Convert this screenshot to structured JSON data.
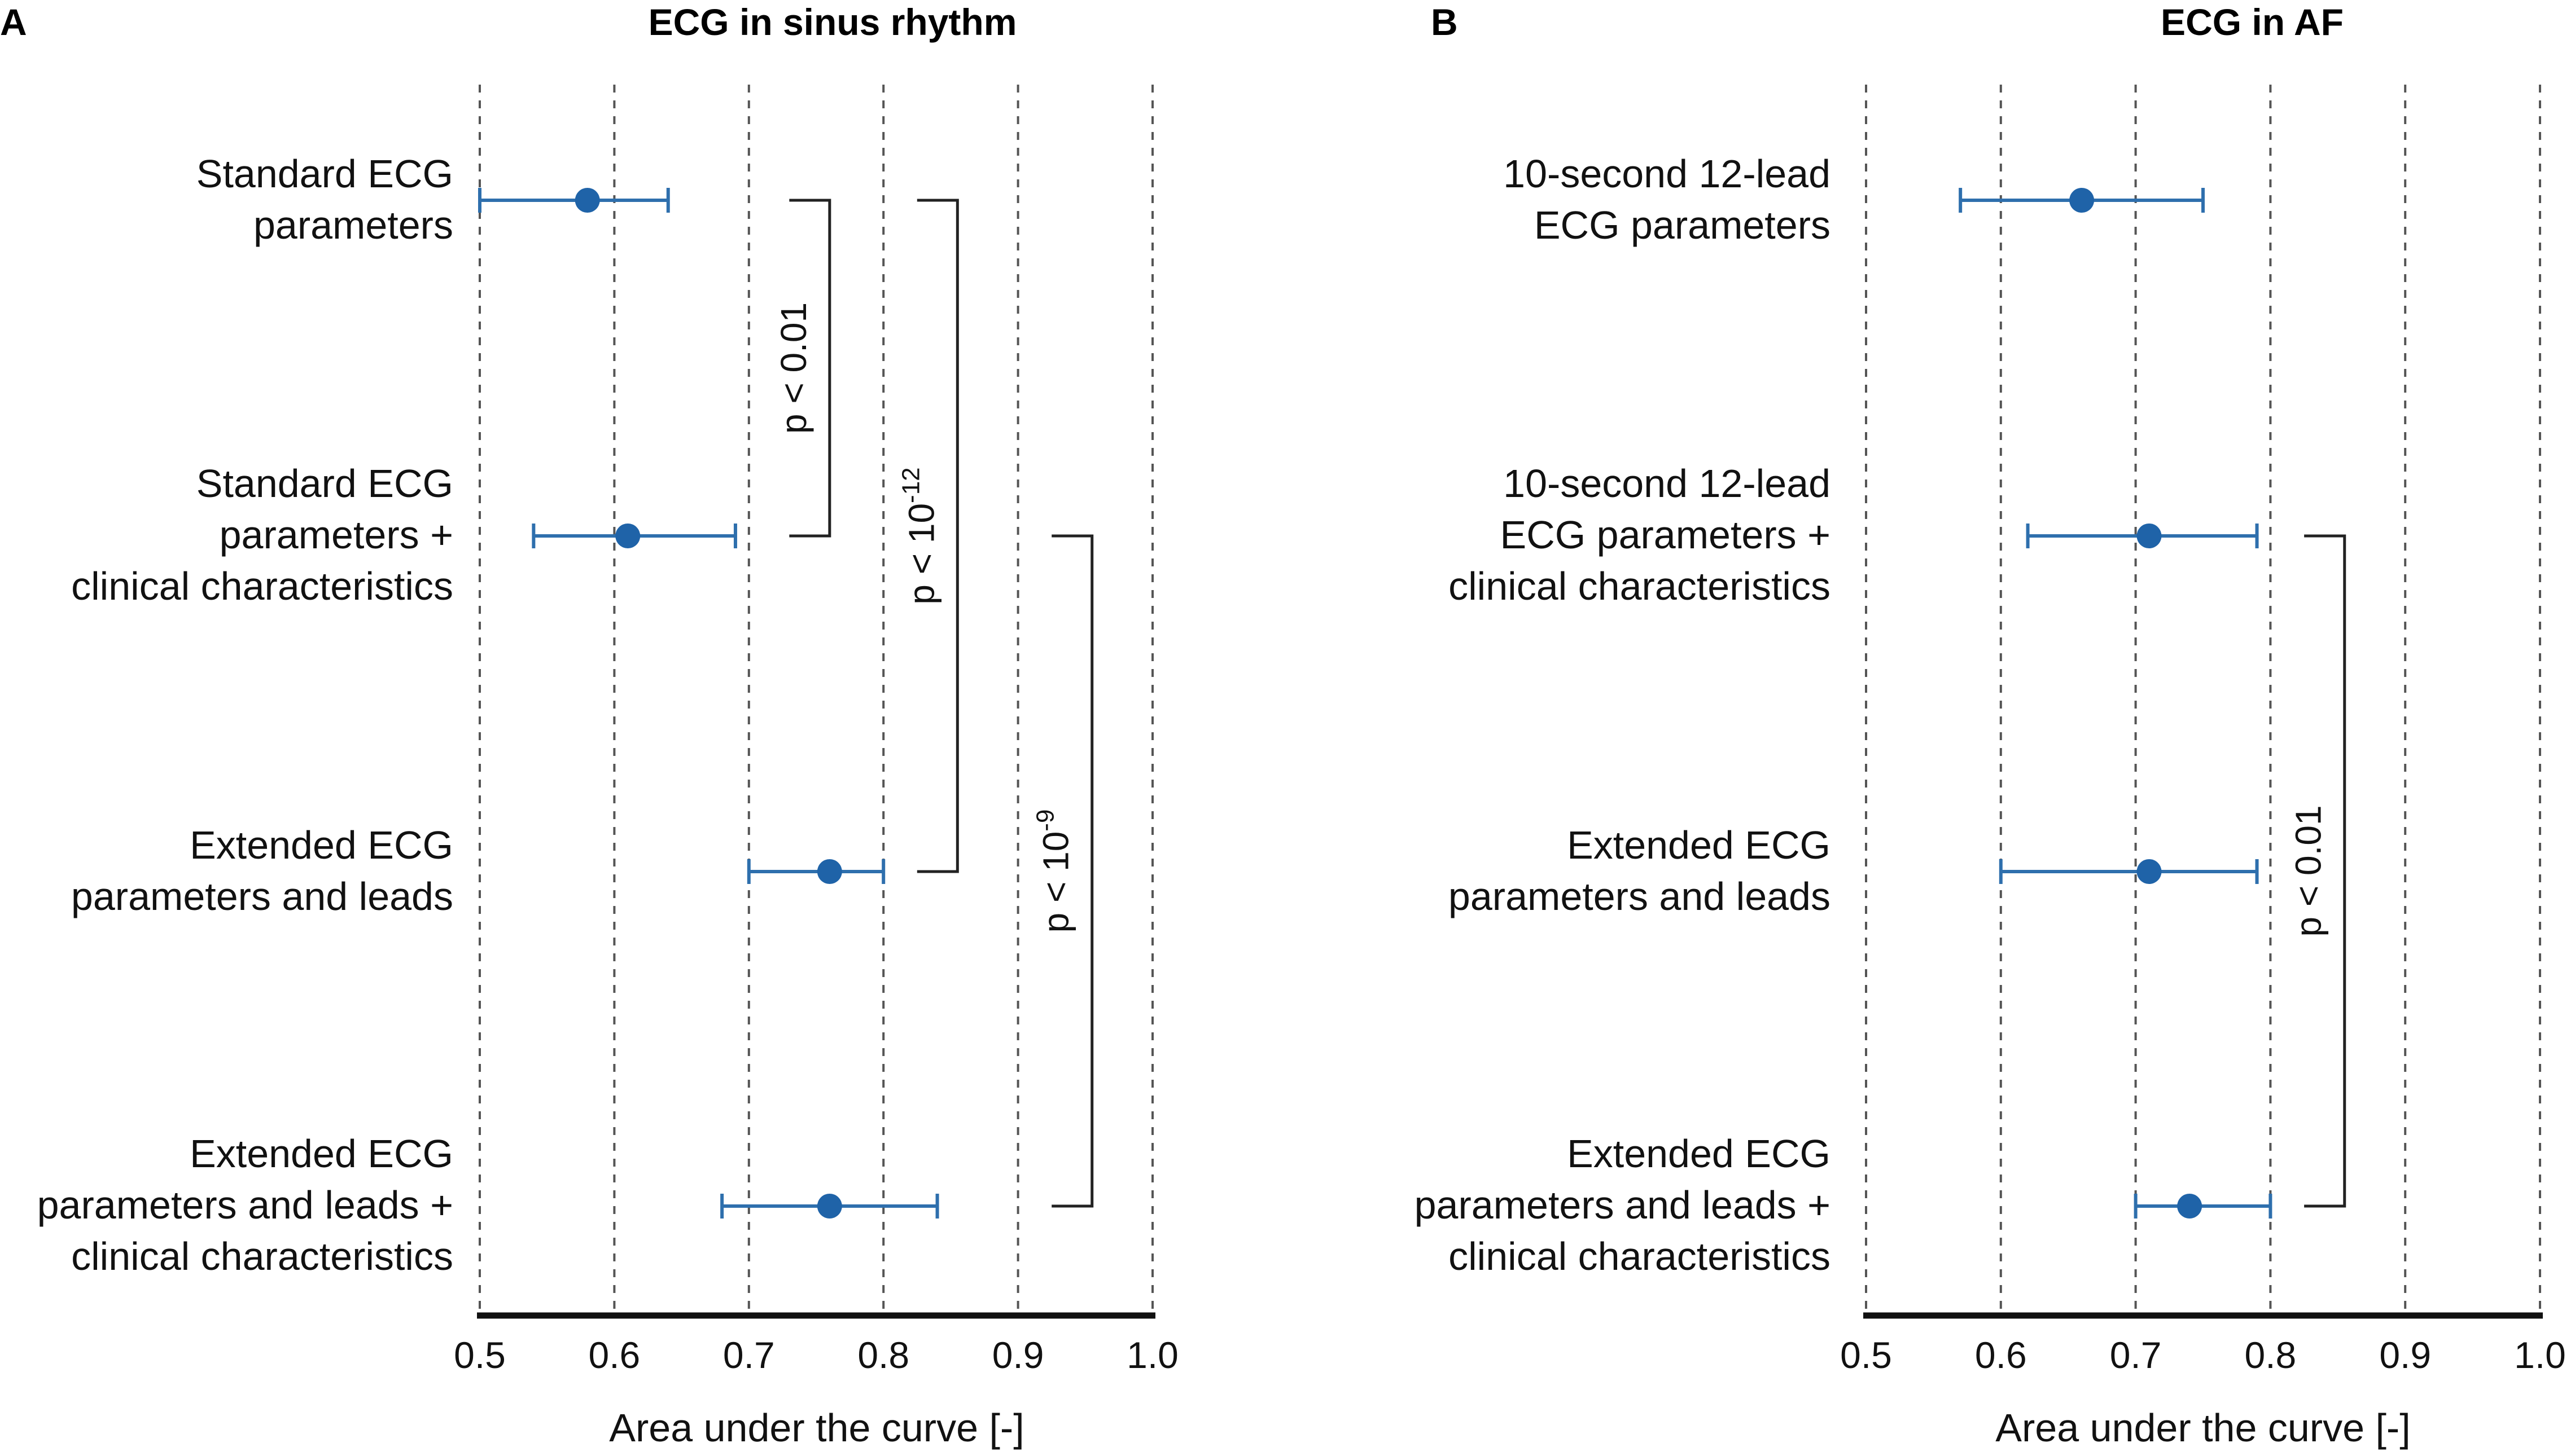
{
  "chart_data": [
    {
      "type": "forest",
      "panel": "A",
      "title": "ECG in sinus rhythm",
      "xlabel": "Area under the curve [-]",
      "xlim": [
        0.5,
        1.0
      ],
      "xticks": [
        "0.5",
        "0.6",
        "0.7",
        "0.8",
        "0.9",
        "1.0"
      ],
      "grid": true,
      "categories": [
        {
          "lines": [
            "Standard ECG",
            "parameters"
          ],
          "auc": 0.58,
          "ci": [
            0.5,
            0.64
          ]
        },
        {
          "lines": [
            "Standard ECG",
            "parameters +",
            "clinical characteristics"
          ],
          "auc": 0.61,
          "ci": [
            0.54,
            0.69
          ]
        },
        {
          "lines": [
            "Extended ECG",
            "parameters and leads"
          ],
          "auc": 0.76,
          "ci": [
            0.7,
            0.8
          ]
        },
        {
          "lines": [
            "Extended ECG",
            "parameters and leads +",
            "clinical characteristics"
          ],
          "auc": 0.76,
          "ci": [
            0.68,
            0.84
          ]
        }
      ],
      "comparisons": [
        {
          "from": 0,
          "to": 1,
          "label_base": "p < 0.01",
          "label_sup": "",
          "bracket_x": 0.76,
          "tick_x": 0.73
        },
        {
          "from": 0,
          "to": 2,
          "label_base": "p < 10",
          "label_sup": "-12",
          "bracket_x": 0.855,
          "tick_x": 0.825
        },
        {
          "from": 1,
          "to": 3,
          "label_base": "p < 10",
          "label_sup": "-9",
          "bracket_x": 0.955,
          "tick_x": 0.925
        }
      ]
    },
    {
      "type": "forest",
      "panel": "B",
      "title": "ECG in AF",
      "xlabel": "Area under the curve [-]",
      "xlim": [
        0.5,
        1.0
      ],
      "xticks": [
        "0.5",
        "0.6",
        "0.7",
        "0.8",
        "0.9",
        "1.0"
      ],
      "grid": true,
      "categories": [
        {
          "lines": [
            "10-second 12-lead",
            "ECG parameters"
          ],
          "auc": 0.66,
          "ci": [
            0.57,
            0.75
          ]
        },
        {
          "lines": [
            "10-second 12-lead",
            "ECG parameters +",
            "clinical characteristics"
          ],
          "auc": 0.71,
          "ci": [
            0.62,
            0.79
          ]
        },
        {
          "lines": [
            "Extended ECG",
            "parameters and leads"
          ],
          "auc": 0.71,
          "ci": [
            0.6,
            0.79
          ]
        },
        {
          "lines": [
            "Extended ECG",
            "parameters and leads +",
            "clinical characteristics"
          ],
          "auc": 0.74,
          "ci": [
            0.7,
            0.8
          ]
        }
      ],
      "comparisons": [
        {
          "from": 1,
          "to": 3,
          "label_base": "p < 0.01",
          "label_sup": "",
          "bracket_x": 0.855,
          "tick_x": 0.825
        }
      ]
    }
  ],
  "colors": {
    "point": "#1f63a8",
    "ci": "#2e6fad",
    "axis": "#111111",
    "grid": "#555555"
  }
}
